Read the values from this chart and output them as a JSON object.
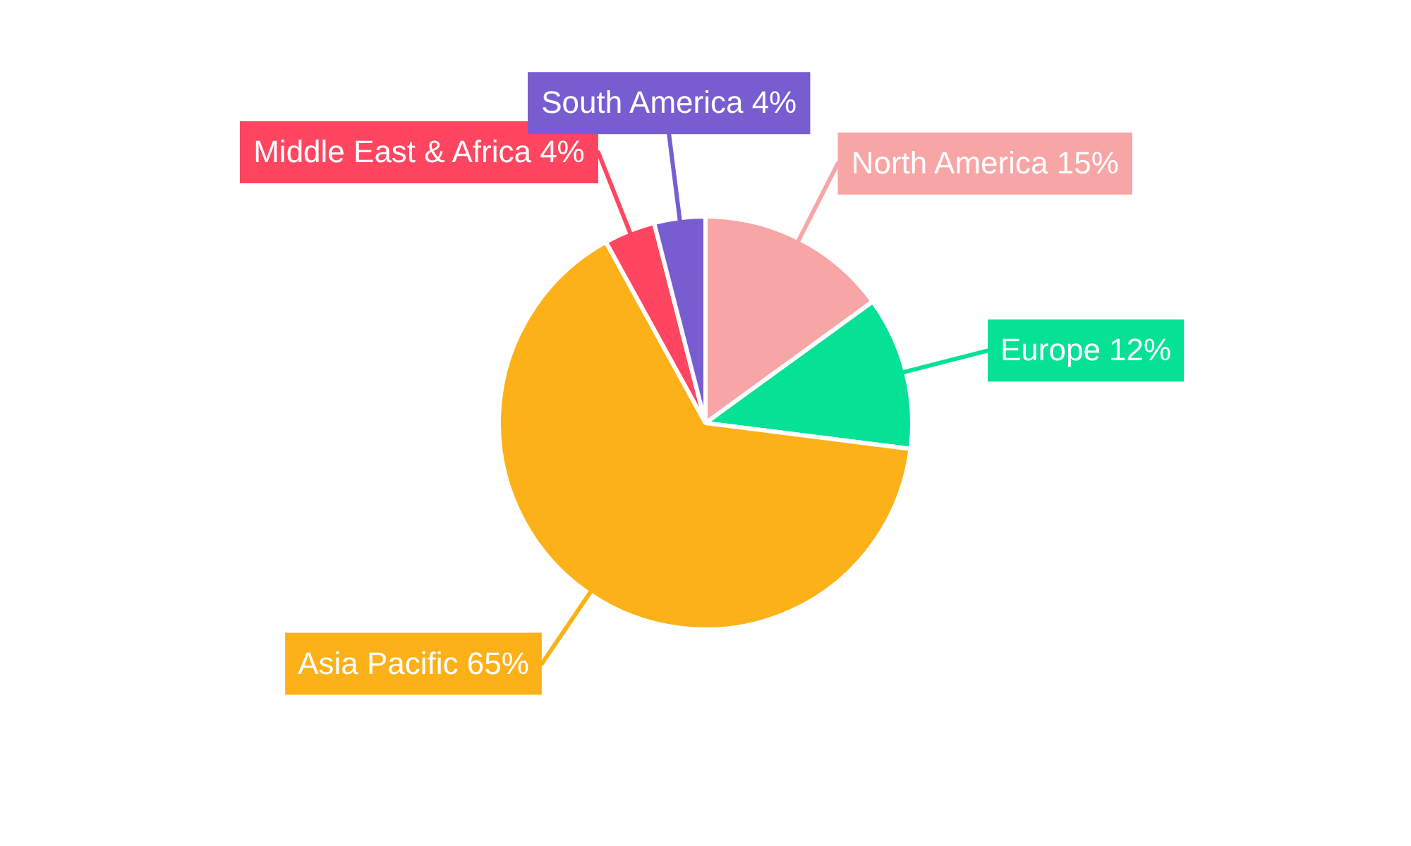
{
  "chart_data": {
    "type": "pie",
    "categories": [
      "North America",
      "Europe",
      "Asia Pacific",
      "Middle East & Africa",
      "South America"
    ],
    "values": [
      15,
      12,
      65,
      4,
      4
    ],
    "value_labels": [
      "15%",
      "12%",
      "65%",
      "4%",
      "4%"
    ],
    "colors": [
      "#f8a5a6",
      "#05e195",
      "#fdb118",
      "#ff4560",
      "#775dd0"
    ]
  }
}
